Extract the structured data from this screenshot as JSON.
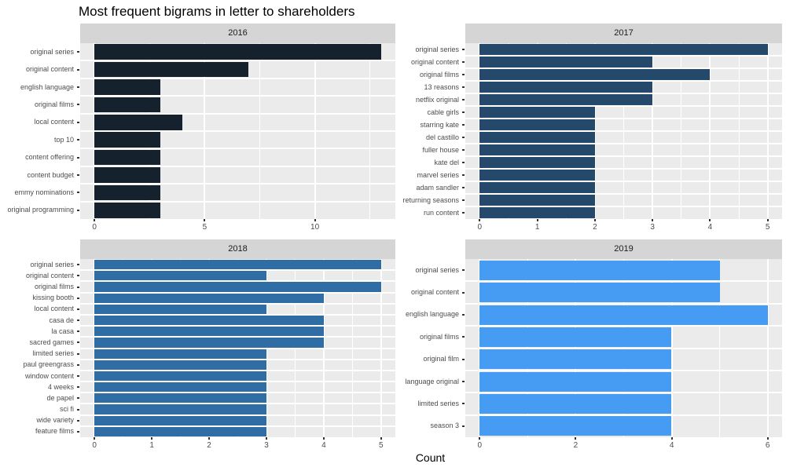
{
  "title": "Most frequent bigrams in letter to shareholders",
  "xlabel": "Count",
  "colors": {
    "background": "#FFFFFF",
    "panel_bg": "#EBEBEB",
    "strip_bg": "#D5D5D5",
    "strip_text": "#1A1A1A",
    "grid": "#FFFFFF",
    "axis_text": "#4D4D4D",
    "tick_mark": "#333333"
  },
  "chart_data": [
    {
      "type": "bar",
      "orientation": "horizontal",
      "title": "2016",
      "bar_color": "#15222E",
      "xticks": [
        0,
        5,
        10
      ],
      "xmax": 13,
      "categories": [
        "original series",
        "original content",
        "english language",
        "original films",
        "local content",
        "top 10",
        "content offering",
        "content budget",
        "emmy nominations",
        "original programming"
      ],
      "values": [
        13,
        7,
        3,
        3,
        4,
        3,
        3,
        3,
        3,
        3
      ]
    },
    {
      "type": "bar",
      "orientation": "horizontal",
      "title": "2017",
      "bar_color": "#24496B",
      "xticks": [
        0,
        1,
        2,
        3,
        4,
        5
      ],
      "xmax": 5,
      "categories": [
        "original series",
        "original content",
        "original films",
        "13 reasons",
        "netflix original",
        "cable girls",
        "starring kate",
        "del castillo",
        "fuller house",
        "kate del",
        "marvel series",
        "adam sandler",
        "returning seasons",
        "run content"
      ],
      "values": [
        5,
        3,
        4,
        3,
        3,
        2,
        2,
        2,
        2,
        2,
        2,
        2,
        2,
        2
      ]
    },
    {
      "type": "bar",
      "orientation": "horizontal",
      "title": "2018",
      "bar_color": "#2F6DA4",
      "xticks": [
        0,
        1,
        2,
        3,
        4,
        5
      ],
      "xmax": 5,
      "categories": [
        "original series",
        "original content",
        "original films",
        "kissing booth",
        "local content",
        "casa de",
        "la casa",
        "sacred games",
        "limited series",
        "paul greengrass",
        "window content",
        "4 weeks",
        "de papel",
        "sci fi",
        "wide variety",
        "feature films"
      ],
      "values": [
        5,
        3,
        5,
        4,
        3,
        4,
        4,
        4,
        3,
        3,
        3,
        3,
        3,
        3,
        3,
        3
      ]
    },
    {
      "type": "bar",
      "orientation": "horizontal",
      "title": "2019",
      "bar_color": "#469CF3",
      "xticks": [
        0,
        2,
        4,
        6
      ],
      "xmax": 6,
      "categories": [
        "original series",
        "original content",
        "english language",
        "original films",
        "original film",
        "language original",
        "limited series",
        "season 3"
      ],
      "values": [
        5,
        5,
        6,
        4,
        4,
        4,
        4,
        4
      ]
    }
  ]
}
